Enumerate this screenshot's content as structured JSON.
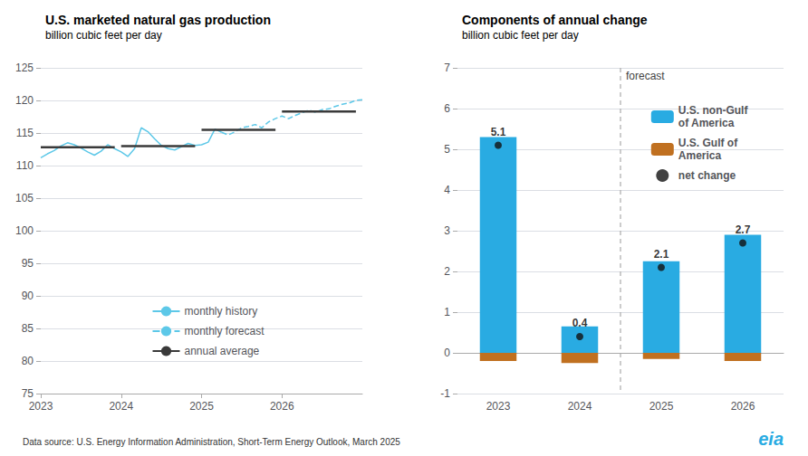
{
  "chart_data": [
    {
      "type": "line",
      "title": "U.S. marketed natural gas production",
      "subtitle": "billion cubic feet per day",
      "series": [
        {
          "name": "monthly history",
          "color": "#5DC8E8",
          "line_style": "solid",
          "x": [
            2023.0,
            2023.083,
            2023.167,
            2023.25,
            2023.333,
            2023.417,
            2023.5,
            2023.583,
            2023.667,
            2023.75,
            2023.833,
            2023.917,
            2024.0,
            2024.083,
            2024.167,
            2024.25,
            2024.333,
            2024.417,
            2024.5,
            2024.583,
            2024.667,
            2024.75,
            2024.833,
            2024.917,
            2025.0,
            2025.083,
            2025.167,
            2025.25
          ],
          "values": [
            111.2,
            111.8,
            112.3,
            113.0,
            113.5,
            113.2,
            112.7,
            112.1,
            111.6,
            112.2,
            113.2,
            112.6,
            112.1,
            111.4,
            112.6,
            115.8,
            115.2,
            114.1,
            113.1,
            112.6,
            112.4,
            112.9,
            113.4,
            113.1,
            113.2,
            113.6,
            115.6,
            115.1
          ]
        },
        {
          "name": "monthly forecast",
          "color": "#5DC8E8",
          "line_style": "dashed",
          "x": [
            2025.25,
            2025.333,
            2025.417,
            2025.5,
            2025.583,
            2025.667,
            2025.75,
            2025.833,
            2025.917,
            2026.0,
            2026.083,
            2026.167,
            2026.25,
            2026.333,
            2026.417,
            2026.5,
            2026.583,
            2026.667,
            2026.75,
            2026.833,
            2026.917,
            2027.0
          ],
          "values": [
            115.1,
            114.7,
            115.2,
            115.8,
            116.0,
            116.3,
            115.8,
            116.7,
            117.2,
            117.6,
            117.2,
            117.7,
            118.1,
            118.5,
            118.2,
            118.6,
            118.7,
            119.1,
            119.4,
            119.6,
            120.0,
            120.1
          ]
        },
        {
          "name": "annual average",
          "color": "#3A3A3A",
          "line_style": "solid",
          "x_start": [
            2023.0,
            2024.0,
            2025.0,
            2026.0
          ],
          "x_end": [
            2023.92,
            2024.92,
            2025.92,
            2026.92
          ],
          "values": [
            112.8,
            113.0,
            115.5,
            118.3
          ]
        }
      ],
      "xlim": [
        2023.0,
        2027.0
      ],
      "xticks": [
        2023,
        2024,
        2025,
        2026
      ],
      "ylim": [
        75,
        125
      ],
      "yticks": [
        75,
        80,
        85,
        90,
        95,
        100,
        105,
        110,
        115,
        120,
        125
      ],
      "grid": true,
      "legend": "bottom",
      "annotations": [
        {
          "text": "Data source: U.S. Energy Information Administration, Short-Term Energy Outlook, March 2025"
        }
      ]
    },
    {
      "type": "bar",
      "title": "Components of annual change",
      "subtitle": "billion cubic feet per day",
      "categories": [
        "2023",
        "2024",
        "2025",
        "2026"
      ],
      "stacked": true,
      "series": [
        {
          "name": "U.S. non-Gulf\nof America",
          "type": "bar",
          "color": "#29ABE2",
          "values": [
            5.3,
            0.65,
            2.25,
            2.9
          ]
        },
        {
          "name": "U.S. Gulf of\nAmerica",
          "type": "bar",
          "color": "#C07020",
          "values": [
            -0.2,
            -0.25,
            -0.15,
            -0.2
          ]
        },
        {
          "name": "net change",
          "type": "scatter",
          "color": "#111111",
          "marker": "circle",
          "data_labels": true,
          "values": [
            5.1,
            0.4,
            2.1,
            2.7
          ]
        }
      ],
      "ylim": [
        -1,
        7
      ],
      "yticks": [
        -1,
        0,
        1,
        2,
        3,
        4,
        5,
        6,
        7
      ],
      "grid": true,
      "legend": "top right",
      "annotations": [
        {
          "text": "forecast",
          "x": "2025"
        },
        {
          "text": "eia",
          "color": "#29ABE2"
        }
      ]
    }
  ]
}
